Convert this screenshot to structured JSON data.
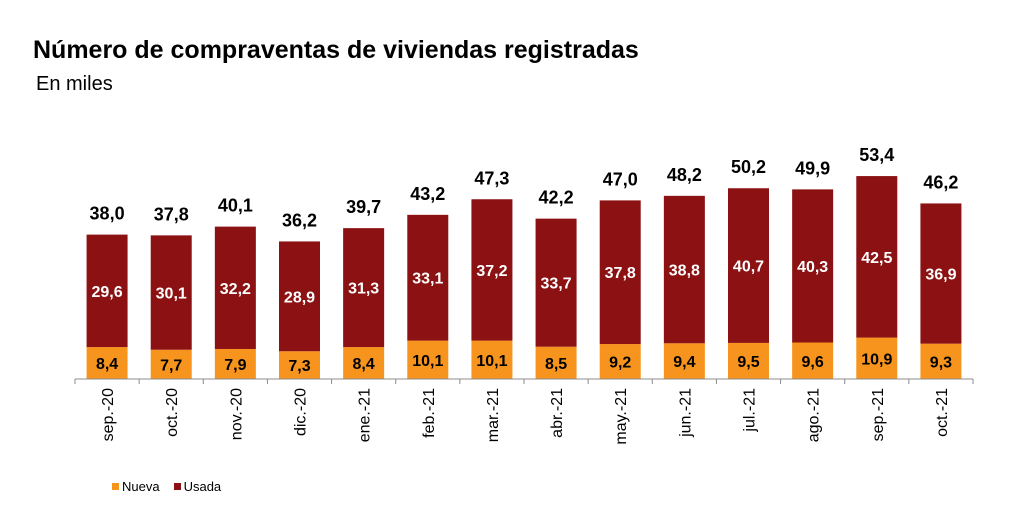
{
  "chart_data": {
    "type": "bar",
    "stacked": true,
    "title": "Número de compraventas de viviendas registradas",
    "subtitle": "En miles",
    "categories": [
      "sep.-20",
      "oct.-20",
      "nov.-20",
      "dic.-20",
      "ene.-21",
      "feb.-21",
      "mar.-21",
      "abr.-21",
      "may.-21",
      "jun.-21",
      "jul.-21",
      "ago.-21",
      "sep.-21",
      "oct.-21"
    ],
    "series": [
      {
        "name": "Nueva",
        "color": "#F7941D",
        "values": [
          8.4,
          7.7,
          7.9,
          7.3,
          8.4,
          10.1,
          10.1,
          8.5,
          9.2,
          9.4,
          9.5,
          9.6,
          10.9,
          9.3
        ]
      },
      {
        "name": "Usada",
        "color": "#8B1113",
        "values": [
          29.6,
          30.1,
          32.2,
          28.9,
          31.3,
          33.1,
          37.2,
          33.7,
          37.8,
          38.8,
          40.7,
          40.3,
          42.5,
          36.9
        ]
      }
    ],
    "totals": [
      38.0,
      37.8,
      40.1,
      36.2,
      39.7,
      43.2,
      47.3,
      42.2,
      47.0,
      48.2,
      50.2,
      49.9,
      53.4,
      46.2
    ],
    "data_labels": {
      "totals": [
        "38,0",
        "37,8",
        "40,1",
        "36,2",
        "39,7",
        "43,2",
        "47,3",
        "42,2",
        "47,0",
        "48,2",
        "50,2",
        "49,9",
        "53,4",
        "46,2"
      ],
      "Nueva": [
        "8,4",
        "7,7",
        "7,9",
        "7,3",
        "8,4",
        "10,1",
        "10,1",
        "8,5",
        "9,2",
        "9,4",
        "9,5",
        "9,6",
        "10,9",
        "9,3"
      ],
      "Usada": [
        "29,6",
        "30,1",
        "32,2",
        "28,9",
        "31,3",
        "33,1",
        "37,2",
        "33,7",
        "37,8",
        "38,8",
        "40,7",
        "40,3",
        "42,5",
        "36,9"
      ]
    },
    "ylim": [
      0,
      70
    ],
    "legend_position": "bottom-left",
    "grid": false
  }
}
